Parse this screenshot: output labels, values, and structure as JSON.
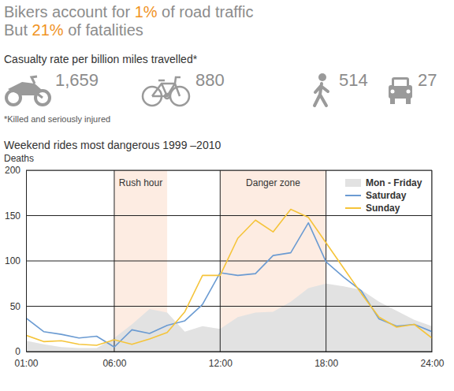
{
  "headline": [
    [
      {
        "text": "Bikers account for "
      },
      {
        "text": "1%",
        "color": "#f0931f"
      },
      {
        "text": " of road traffic"
      }
    ],
    [
      {
        "text": "But "
      },
      {
        "text": "21%",
        "color": "#f0931f"
      },
      {
        "text": " of fatalities"
      }
    ]
  ],
  "casualty_rates": {
    "title": "Casualty rate per billion miles travelled*",
    "values": [
      "1,659",
      "880",
      "514",
      "27"
    ],
    "footnote": "*Killed and seriously injured"
  },
  "chart_data": {
    "type": "line",
    "title": "Weekend rides most dangerous 1999 –2010",
    "ylabel": "Deaths",
    "x": [
      1,
      2,
      3,
      4,
      5,
      6,
      7,
      8,
      9,
      10,
      11,
      12,
      13,
      14,
      15,
      16,
      17,
      18,
      19,
      20,
      21,
      22,
      23,
      24
    ],
    "xlim": [
      1,
      24
    ],
    "xticks": [
      {
        "value": 1,
        "label": "01:00"
      },
      {
        "value": 6,
        "label": "06:00"
      },
      {
        "value": 12,
        "label": "12:00"
      },
      {
        "value": 18,
        "label": "18:00"
      },
      {
        "value": 24,
        "label": "24:00"
      }
    ],
    "ylim": [
      0,
      200
    ],
    "yticks": [
      0,
      50,
      100,
      150,
      200
    ],
    "grid": true,
    "legend": "upper right",
    "annotations": [
      {
        "text": "Rush hour",
        "x": [
          6,
          9
        ]
      },
      {
        "text": "Danger zone",
        "x": [
          12,
          18
        ]
      }
    ],
    "series": [
      {
        "name": "Mon - Friday",
        "type": "area",
        "color": "#e2e2e2",
        "values": [
          12,
          8,
          5,
          4,
          4,
          15,
          30,
          47,
          43,
          22,
          28,
          25,
          38,
          43,
          44,
          55,
          70,
          75,
          72,
          68,
          55,
          45,
          35,
          28
        ]
      },
      {
        "name": "Saturday",
        "type": "line",
        "color": "#6b9bd2",
        "values": [
          37,
          22,
          19,
          15,
          17,
          5,
          24,
          20,
          29,
          34,
          52,
          87,
          84,
          86,
          106,
          109,
          142,
          99,
          82,
          67,
          36,
          28,
          30,
          22
        ]
      },
      {
        "name": "Sunday",
        "type": "line",
        "color": "#f5c43a",
        "values": [
          18,
          11,
          12,
          8,
          7,
          13,
          8,
          14,
          21,
          44,
          84,
          84,
          125,
          145,
          132,
          157,
          148,
          120,
          92,
          64,
          38,
          27,
          30,
          15
        ]
      }
    ]
  }
}
